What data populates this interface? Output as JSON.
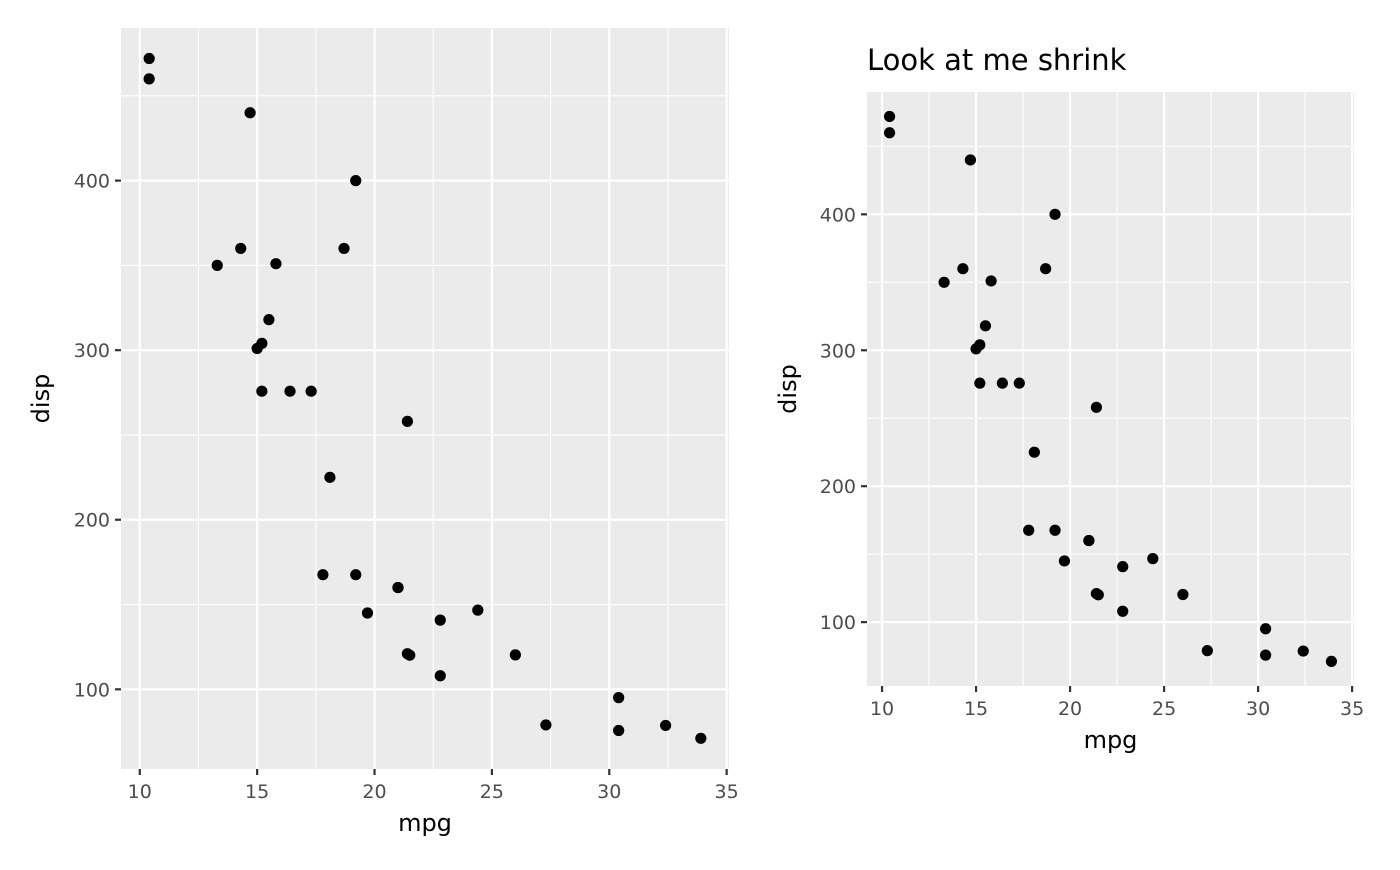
{
  "chart_data": [
    {
      "type": "scatter",
      "title": "",
      "xlabel": "mpg",
      "ylabel": "disp",
      "xlim": [
        9.2,
        35.1
      ],
      "ylim": [
        53.0,
        490.0
      ],
      "xticks": [
        10,
        15,
        20,
        25,
        30,
        35
      ],
      "yticks": [
        100,
        200,
        300,
        400
      ],
      "grid": true,
      "points": [
        [
          21.0,
          160
        ],
        [
          21.0,
          160
        ],
        [
          22.8,
          108
        ],
        [
          21.4,
          258
        ],
        [
          18.7,
          360
        ],
        [
          18.1,
          225
        ],
        [
          14.3,
          360
        ],
        [
          24.4,
          146.7
        ],
        [
          22.8,
          140.8
        ],
        [
          19.2,
          167.6
        ],
        [
          17.8,
          167.6
        ],
        [
          16.4,
          275.8
        ],
        [
          17.3,
          275.8
        ],
        [
          15.2,
          275.8
        ],
        [
          10.4,
          472
        ],
        [
          10.4,
          460
        ],
        [
          14.7,
          440
        ],
        [
          32.4,
          78.7
        ],
        [
          30.4,
          75.7
        ],
        [
          33.9,
          71.1
        ],
        [
          21.5,
          120.1
        ],
        [
          15.5,
          318
        ],
        [
          15.2,
          304
        ],
        [
          13.3,
          350
        ],
        [
          19.2,
          400
        ],
        [
          27.3,
          79
        ],
        [
          26.0,
          120.3
        ],
        [
          30.4,
          95.1
        ],
        [
          15.8,
          351
        ],
        [
          19.7,
          145
        ],
        [
          15.0,
          301
        ],
        [
          21.4,
          121
        ]
      ]
    },
    {
      "type": "scatter",
      "title": "Look at me shrink",
      "xlabel": "mpg",
      "ylabel": "disp",
      "xlim": [
        9.2,
        35.1
      ],
      "ylim": [
        53.0,
        490.0
      ],
      "xticks": [
        10,
        15,
        20,
        25,
        30,
        35
      ],
      "yticks": [
        100,
        200,
        300,
        400
      ],
      "grid": true,
      "points": [
        [
          21.0,
          160
        ],
        [
          21.0,
          160
        ],
        [
          22.8,
          108
        ],
        [
          21.4,
          258
        ],
        [
          18.7,
          360
        ],
        [
          18.1,
          225
        ],
        [
          14.3,
          360
        ],
        [
          24.4,
          146.7
        ],
        [
          22.8,
          140.8
        ],
        [
          19.2,
          167.6
        ],
        [
          17.8,
          167.6
        ],
        [
          16.4,
          275.8
        ],
        [
          17.3,
          275.8
        ],
        [
          15.2,
          275.8
        ],
        [
          10.4,
          472
        ],
        [
          10.4,
          460
        ],
        [
          14.7,
          440
        ],
        [
          32.4,
          78.7
        ],
        [
          30.4,
          75.7
        ],
        [
          33.9,
          71.1
        ],
        [
          21.5,
          120.1
        ],
        [
          15.5,
          318
        ],
        [
          15.2,
          304
        ],
        [
          13.3,
          350
        ],
        [
          19.2,
          400
        ],
        [
          27.3,
          79
        ],
        [
          26.0,
          120.3
        ],
        [
          30.4,
          95.1
        ],
        [
          15.8,
          351
        ],
        [
          19.7,
          145
        ],
        [
          15.0,
          301
        ],
        [
          21.4,
          121
        ]
      ]
    }
  ]
}
